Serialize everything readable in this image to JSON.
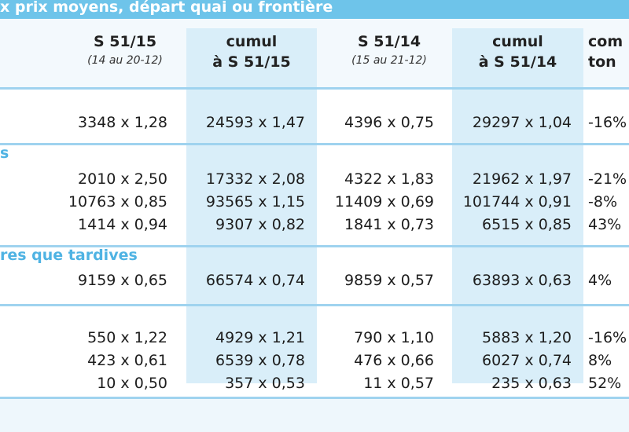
{
  "title": "x prix moyens, départ quai ou frontière",
  "headers": [
    {
      "l1": "S 51/15",
      "l2": "(14 au 20-12)"
    },
    {
      "l1": "cumul",
      "l2": "à S 51/15"
    },
    {
      "l1": "S 51/14",
      "l2": "(15 au 21-12)"
    },
    {
      "l1": "cumul",
      "l2": "à S 51/14"
    },
    {
      "l1": "com",
      "l2": "ton"
    }
  ],
  "sections": [
    {
      "label": "",
      "rows": [
        [
          "3348 x 1,28",
          "24593 x 1,47",
          "4396 x 0,75",
          "29297 x 1,04",
          "-16%"
        ]
      ]
    },
    {
      "label": "s",
      "rows": [
        [
          "2010 x 2,50",
          "17332 x 2,08",
          "4322 x 1,83",
          "21962 x 1,97",
          "-21%"
        ],
        [
          "10763 x 0,85",
          "93565 x 1,15",
          "11409 x 0,69",
          "101744 x 0,91",
          "-8%"
        ],
        [
          "1414 x 0,94",
          "9307 x 0,82",
          "1841 x 0,73",
          "6515 x 0,85",
          "43%"
        ]
      ]
    },
    {
      "label": "res que tardives",
      "rows": [
        [
          "9159 x 0,65",
          "66574 x 0,74",
          "9859 x 0,57",
          "63893 x 0,63",
          "4%"
        ]
      ]
    },
    {
      "label": "",
      "rows": [
        [
          "550 x 1,22",
          "4929 x 1,21",
          "790 x 1,10",
          "5883 x 1,20",
          "-16%"
        ],
        [
          "423 x 0,61",
          "6539 x 0,78",
          "476 x 0,66",
          "6027 x 0,74",
          "8%"
        ],
        [
          "10 x 0,50",
          "357 x 0,53",
          "11 x 0,57",
          "235 x 0,63",
          "52%"
        ]
      ]
    }
  ]
}
